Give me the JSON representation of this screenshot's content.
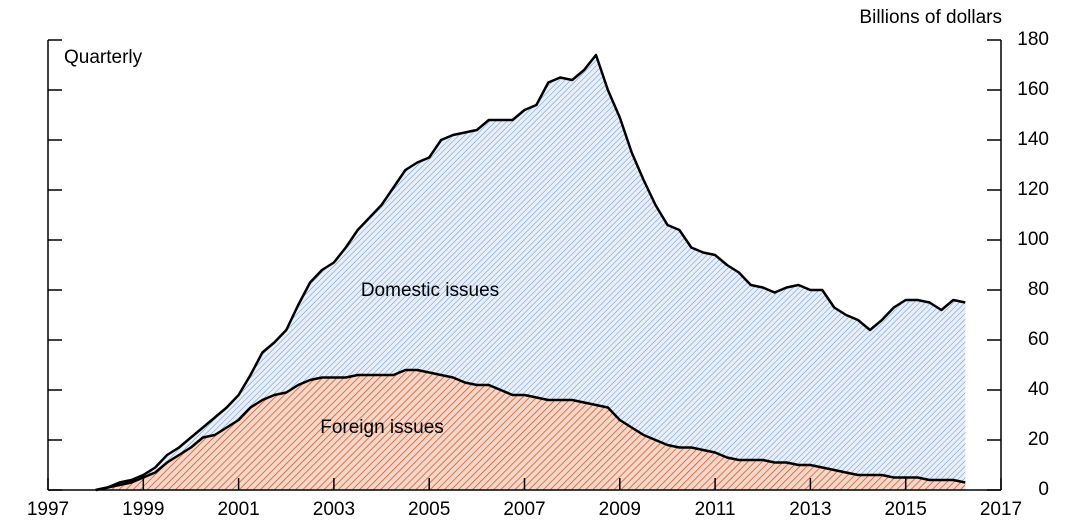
{
  "chart_data": {
    "type": "stacked_area",
    "annotation": "Quarterly",
    "y_axis_label": "Billions of dollars",
    "x": [
      1998,
      1998.25,
      1998.5,
      1998.75,
      1999,
      1999.25,
      1999.5,
      1999.75,
      2000,
      2000.25,
      2000.5,
      2000.75,
      2001,
      2001.25,
      2001.5,
      2001.75,
      2002,
      2002.25,
      2002.5,
      2002.75,
      2003,
      2003.25,
      2003.5,
      2003.75,
      2004,
      2004.25,
      2004.5,
      2004.75,
      2005,
      2005.25,
      2005.5,
      2005.75,
      2006,
      2006.25,
      2006.5,
      2006.75,
      2007,
      2007.25,
      2007.5,
      2007.75,
      2008,
      2008.25,
      2008.5,
      2008.75,
      2009,
      2009.25,
      2009.5,
      2009.75,
      2010,
      2010.25,
      2010.5,
      2010.75,
      2011,
      2011.25,
      2011.5,
      2011.75,
      2012,
      2012.25,
      2012.5,
      2012.75,
      2013,
      2013.25,
      2013.5,
      2013.75,
      2014,
      2014.25,
      2014.5,
      2014.75,
      2015,
      2015.25,
      2015.5,
      2015.75,
      2016,
      2016.25
    ],
    "series": [
      {
        "name": "Foreign issues",
        "color": "#c0502d",
        "fill": "#f6d6c6",
        "values": [
          0,
          1,
          2,
          3,
          5,
          7,
          11,
          14,
          17,
          21,
          22,
          25,
          28,
          33,
          36,
          38,
          39,
          42,
          44,
          45,
          45,
          45,
          46,
          46,
          46,
          46,
          48,
          48,
          47,
          46,
          45,
          43,
          42,
          42,
          40,
          38,
          38,
          37,
          36,
          36,
          36,
          35,
          34,
          33,
          28,
          25,
          22,
          20,
          18,
          17,
          17,
          16,
          15,
          13,
          12,
          12,
          12,
          11,
          11,
          10,
          10,
          9,
          8,
          7,
          6,
          6,
          6,
          5,
          5,
          5,
          4,
          4,
          4,
          3
        ]
      },
      {
        "name": "Domestic issues",
        "color": "#4f7fc0",
        "fill": "#e3ecf8",
        "values": [
          0,
          0,
          1,
          1,
          1,
          2,
          3,
          3,
          4,
          4,
          7,
          8,
          10,
          13,
          19,
          21,
          25,
          32,
          39,
          43,
          46,
          52,
          58,
          63,
          68,
          75,
          80,
          83,
          86,
          94,
          97,
          100,
          102,
          106,
          108,
          110,
          114,
          117,
          127,
          129,
          128,
          133,
          140,
          127,
          121,
          110,
          102,
          94,
          88,
          87,
          80,
          79,
          79,
          77,
          75,
          70,
          69,
          68,
          70,
          72,
          70,
          71,
          65,
          63,
          62,
          58,
          62,
          68,
          71,
          71,
          71,
          68,
          72,
          72
        ]
      }
    ],
    "xlim": [
      1997,
      2017
    ],
    "xticks": [
      1997,
      1999,
      2001,
      2003,
      2005,
      2007,
      2009,
      2011,
      2013,
      2015,
      2017
    ],
    "ylim": [
      0,
      180
    ],
    "yticks": [
      0,
      20,
      40,
      60,
      80,
      100,
      120,
      140,
      160,
      180
    ]
  }
}
